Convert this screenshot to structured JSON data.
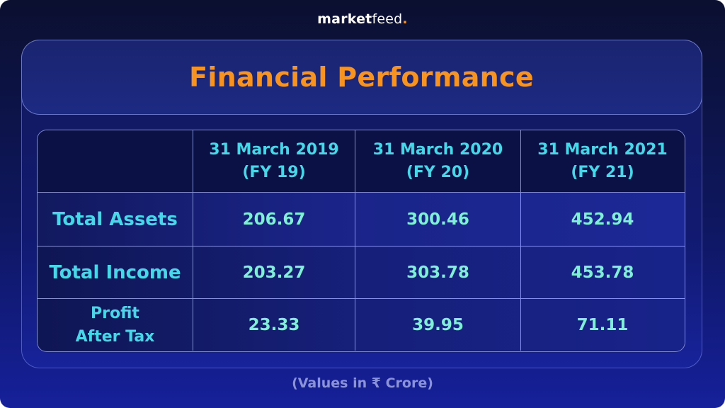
{
  "brand": {
    "main": "market",
    "second": "feed",
    "dot": "."
  },
  "title": "Financial Performance",
  "footnote": "(Values in ₹ Crore)",
  "colors": {
    "title": "#f7931e",
    "header_text": "#45d8e8",
    "value_text": "#7ff0d6",
    "footnote": "#8a93d8"
  },
  "chart_data": {
    "type": "table",
    "title": "Financial Performance",
    "unit": "(Values in ₹ Crore)",
    "columns": [
      "31 March 2019\n(FY 19)",
      "31 March 2020\n(FY 20)",
      "31 March 2021\n(FY 21)"
    ],
    "rows": [
      {
        "label": "Total Assets",
        "values": [
          "206.67",
          "300.46",
          "452.94"
        ]
      },
      {
        "label": "Total Income",
        "values": [
          "203.27",
          "303.78",
          "453.78"
        ]
      },
      {
        "label": "Profit\nAfter Tax",
        "values": [
          "23.33",
          "39.95",
          "71.11"
        ]
      }
    ]
  }
}
